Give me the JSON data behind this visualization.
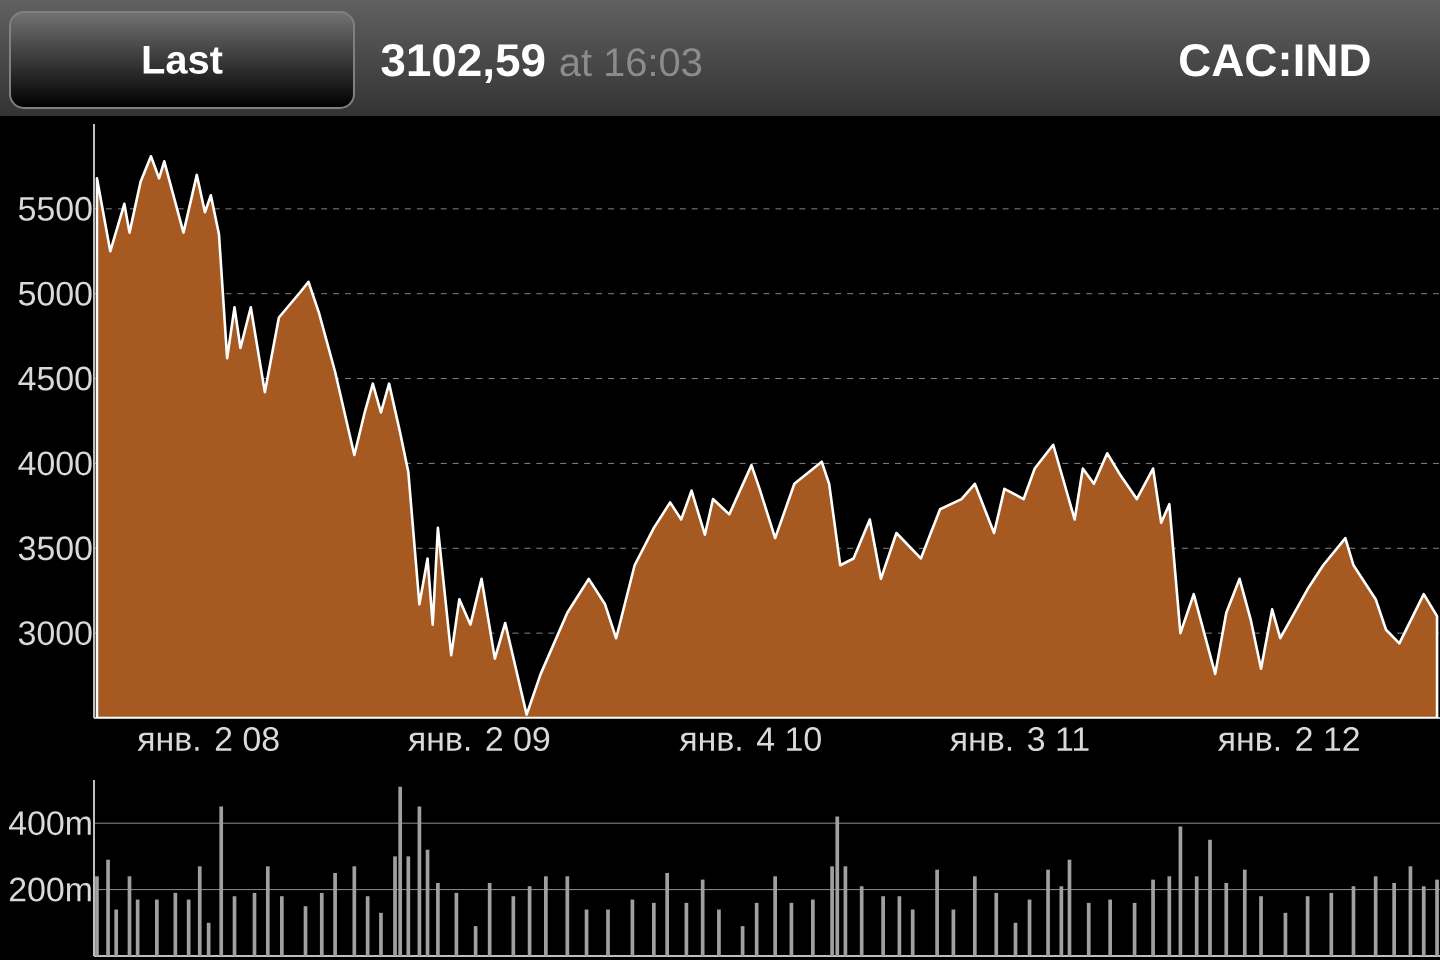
{
  "chart_data": [
    {
      "type": "area",
      "title": "CAC:IND",
      "annotations": [
        "Last",
        "3102,59",
        "at 16:03"
      ],
      "x": [
        "2007-08-04",
        "2007-08-22",
        "2007-09-10",
        "2007-09-17",
        "2007-10-02",
        "2007-10-16",
        "2007-10-27",
        "2007-11-03",
        "2007-11-29",
        "2007-12-17",
        "2007-12-28",
        "2008-01-05",
        "2008-01-16",
        "2008-01-27",
        "2008-02-06",
        "2008-02-14",
        "2008-02-28",
        "2008-03-18",
        "2008-04-06",
        "2008-05-05",
        "2008-05-16",
        "2008-05-30",
        "2008-06-21",
        "2008-07-17",
        "2008-07-31",
        "2008-08-11",
        "2008-08-22",
        "2008-09-02",
        "2008-09-17",
        "2008-09-28",
        "2008-10-13",
        "2008-10-24",
        "2008-10-31",
        "2008-11-07",
        "2008-11-25",
        "2008-12-06",
        "2008-12-21",
        "2009-01-05",
        "2009-01-23",
        "2009-02-06",
        "2009-03-07",
        "2009-03-26",
        "2009-05-01",
        "2009-05-30",
        "2009-06-21",
        "2009-07-06",
        "2009-07-31",
        "2009-08-26",
        "2009-09-17",
        "2009-10-02",
        "2009-10-16",
        "2009-11-03",
        "2009-11-14",
        "2009-12-06",
        "2010-01-05",
        "2010-01-16",
        "2010-02-06",
        "2010-03-04",
        "2010-04-10",
        "2010-04-20",
        "2010-05-05",
        "2010-05-23",
        "2010-06-14",
        "2010-06-29",
        "2010-07-20",
        "2010-08-22",
        "2010-09-17",
        "2010-10-16",
        "2010-11-03",
        "2010-11-29",
        "2010-12-13",
        "2011-01-08",
        "2011-01-23",
        "2011-02-17",
        "2011-03-18",
        "2011-03-29",
        "2011-04-13",
        "2011-05-01",
        "2011-05-19",
        "2011-06-10",
        "2011-07-02",
        "2011-07-13",
        "2011-07-24",
        "2011-08-08",
        "2011-08-26",
        "2011-09-24",
        "2011-10-09",
        "2011-10-27",
        "2011-11-11",
        "2011-11-25",
        "2011-12-10",
        "2011-12-21",
        "2012-01-27",
        "2012-02-17",
        "2012-03-18",
        "2012-03-29",
        "2012-04-28",
        "2012-05-12",
        "2012-05-30",
        "2012-07-02",
        "2012-07-20"
      ],
      "series": [
        {
          "color": "#a65a22",
          "values": [
            5680,
            5250,
            5530,
            5360,
            5660,
            5810,
            5680,
            5780,
            5360,
            5700,
            5480,
            5580,
            5350,
            4620,
            4920,
            4680,
            4920,
            4420,
            4860,
            5010,
            5070,
            4890,
            4540,
            4050,
            4300,
            4470,
            4300,
            4470,
            4180,
            3950,
            3170,
            3440,
            3050,
            3620,
            2870,
            3200,
            3050,
            3320,
            2850,
            3060,
            2520,
            2760,
            3120,
            3320,
            3170,
            2970,
            3400,
            3620,
            3770,
            3670,
            3840,
            3580,
            3790,
            3700,
            3990,
            3850,
            3560,
            3880,
            4010,
            3880,
            3400,
            3440,
            3670,
            3320,
            3590,
            3440,
            3730,
            3790,
            3880,
            3590,
            3850,
            3790,
            3970,
            4110,
            3670,
            3970,
            3880,
            4060,
            3930,
            3790,
            3970,
            3650,
            3760,
            3000,
            3230,
            2760,
            3120,
            3320,
            3080,
            2790,
            3140,
            2970,
            3260,
            3400,
            3560,
            3400,
            3200,
            3020,
            2940,
            3230,
            3100
          ]
        }
      ],
      "xlim": [
        "2007-07-31",
        "2012-07-24"
      ],
      "ylim": [
        2500,
        6000
      ],
      "xticks": [
        {
          "value": "2008-01-02",
          "label": "янв. 2 08"
        },
        {
          "value": "2009-01-02",
          "label": "янв. 2 09"
        },
        {
          "value": "2010-01-04",
          "label": "янв. 4 10"
        },
        {
          "value": "2011-01-03",
          "label": "янв. 3 11"
        },
        {
          "value": "2012-01-02",
          "label": "янв. 2 12"
        }
      ],
      "yticks": [
        3000,
        3500,
        4000,
        4500,
        5000,
        5500
      ],
      "grid": "y",
      "marker": "none"
    },
    {
      "type": "bar",
      "x": [
        "2007-08-04",
        "2007-08-19",
        "2007-08-30",
        "2007-09-17",
        "2007-09-28",
        "2007-10-24",
        "2007-11-18",
        "2007-12-06",
        "2007-12-21",
        "2008-01-02",
        "2008-01-19",
        "2008-02-06",
        "2008-03-04",
        "2008-03-22",
        "2008-04-10",
        "2008-05-12",
        "2008-06-03",
        "2008-06-21",
        "2008-07-17",
        "2008-08-04",
        "2008-08-22",
        "2008-09-10",
        "2008-09-17",
        "2008-09-28",
        "2008-10-13",
        "2008-10-24",
        "2008-11-07",
        "2008-12-02",
        "2008-12-28",
        "2009-01-16",
        "2009-02-17",
        "2009-03-11",
        "2009-04-02",
        "2009-05-01",
        "2009-05-27",
        "2009-06-25",
        "2009-07-28",
        "2009-08-26",
        "2009-09-13",
        "2009-10-09",
        "2009-10-31",
        "2009-11-22",
        "2009-12-24",
        "2010-01-12",
        "2010-02-06",
        "2010-02-28",
        "2010-03-29",
        "2010-04-24",
        "2010-05-01",
        "2010-05-12",
        "2010-06-03",
        "2010-07-02",
        "2010-07-24",
        "2010-08-11",
        "2010-09-13",
        "2010-10-05",
        "2010-11-03",
        "2010-12-02",
        "2010-12-28",
        "2011-01-16",
        "2011-02-10",
        "2011-02-28",
        "2011-03-11",
        "2011-04-06",
        "2011-05-05",
        "2011-06-07",
        "2011-07-02",
        "2011-07-24",
        "2011-08-08",
        "2011-08-30",
        "2011-09-17",
        "2011-10-09",
        "2011-11-03",
        "2011-11-25",
        "2011-12-28",
        "2012-01-27",
        "2012-02-28",
        "2012-03-29",
        "2012-04-28",
        "2012-05-23",
        "2012-06-14",
        "2012-07-02",
        "2012-07-20"
      ],
      "series": [
        {
          "color": "#a0a0a0",
          "values": [
            240,
            290,
            140,
            240,
            170,
            170,
            190,
            170,
            270,
            100,
            450,
            180,
            190,
            270,
            180,
            150,
            190,
            250,
            270,
            180,
            130,
            300,
            510,
            300,
            450,
            320,
            220,
            190,
            90,
            220,
            180,
            210,
            240,
            240,
            140,
            140,
            170,
            160,
            250,
            160,
            230,
            140,
            90,
            160,
            240,
            160,
            170,
            270,
            420,
            270,
            210,
            180,
            180,
            140,
            260,
            140,
            240,
            190,
            100,
            170,
            260,
            210,
            290,
            160,
            170,
            160,
            230,
            240,
            390,
            240,
            350,
            220,
            260,
            180,
            130,
            180,
            190,
            210,
            240,
            220,
            270,
            210,
            230
          ]
        }
      ],
      "xlim": [
        "2007-07-31",
        "2012-07-24"
      ],
      "ylim": [
        0,
        530
      ],
      "yticks": [
        {
          "value": 200,
          "label": "200m"
        },
        {
          "value": 400,
          "label": "400m"
        }
      ],
      "grid": "y",
      "tick_labels": "y"
    }
  ]
}
